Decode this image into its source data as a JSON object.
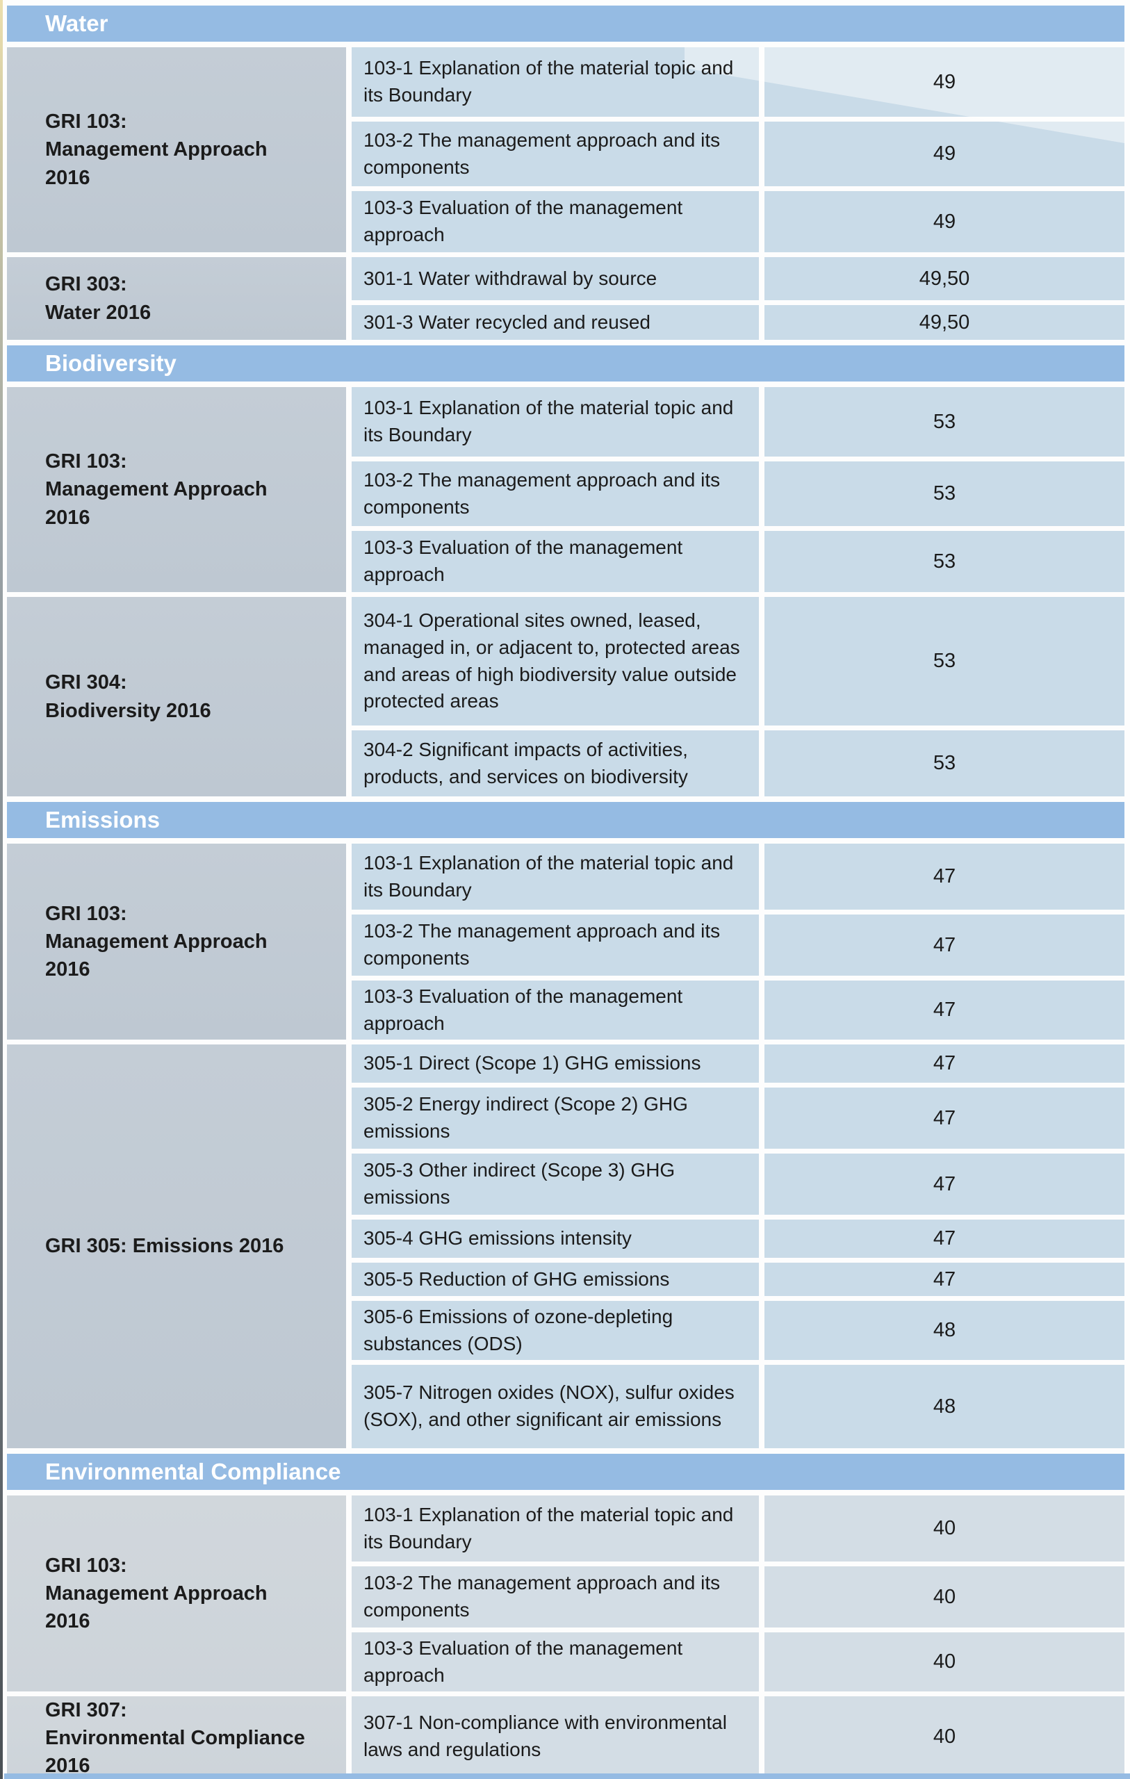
{
  "colors": {
    "header_blue": "#95bbe3",
    "left_cell": "#c4cdd6",
    "left_cell_light": "#d1d7dc",
    "body_cell": "#c9dbe8",
    "body_cell_light": "#d3dde5",
    "text_dark": "#1b1b1b",
    "page_bg": "#fdfdfd"
  },
  "sections": [
    {
      "title": "Water",
      "blocks": [
        {
          "left": "GRI 103:\nManagement Approach\n2016",
          "rows": [
            {
              "text": "103-1 Explanation of the material topic and its Boundary",
              "page": "49"
            },
            {
              "text": "103-2 The management approach and its components",
              "page": "49"
            },
            {
              "text": "103-3 Evaluation of the management approach",
              "page": "49"
            }
          ]
        },
        {
          "left": "GRI 303:\nWater 2016",
          "rows": [
            {
              "text": "301-1 Water withdrawal by source",
              "page": "49,50"
            },
            {
              "text": "301-3 Water recycled and reused",
              "page": "49,50"
            }
          ]
        }
      ]
    },
    {
      "title": "Biodiversity",
      "blocks": [
        {
          "left": "GRI 103:\nManagement Approach\n2016",
          "rows": [
            {
              "text": "103-1 Explanation of the material topic and its Boundary",
              "page": "53"
            },
            {
              "text": "103-2 The management approach and its components",
              "page": "53"
            },
            {
              "text": "103-3 Evaluation of the management approach",
              "page": "53"
            }
          ]
        },
        {
          "left": "GRI 304:\nBiodiversity 2016",
          "rows": [
            {
              "text": "304-1 Operational sites owned, leased, managed in, or adjacent to, protected areas and areas of high biodiversity value outside protected areas",
              "page": "53"
            },
            {
              "text": "304-2 Significant impacts of activities, products, and services on biodiversity",
              "page": "53"
            }
          ]
        }
      ]
    },
    {
      "title": "Emissions",
      "blocks": [
        {
          "left": "GRI 103:\nManagement Approach\n2016",
          "rows": [
            {
              "text": "103-1 Explanation of the material topic and its Boundary",
              "page": "47"
            },
            {
              "text": "103-2 The management approach and its components",
              "page": "47"
            },
            {
              "text": "103-3 Evaluation of the management approach",
              "page": "47"
            }
          ]
        },
        {
          "left": "GRI 305: Emissions 2016",
          "rows": [
            {
              "text": "305-1 Direct (Scope 1) GHG emissions",
              "page": "47"
            },
            {
              "text": "305-2 Energy indirect (Scope 2) GHG emissions",
              "page": "47"
            },
            {
              "text": "305-3 Other indirect (Scope 3) GHG emissions",
              "page": "47"
            },
            {
              "text": "305-4 GHG emissions intensity",
              "page": "47"
            },
            {
              "text": "305-5 Reduction of GHG emissions",
              "page": "47"
            },
            {
              "text": "305-6 Emissions of ozone-depleting substances (ODS)",
              "page": "48"
            },
            {
              "text": "305-7 Nitrogen oxides (NOX), sulfur oxides (SOX), and other significant air emissions",
              "page": "48"
            }
          ]
        }
      ]
    },
    {
      "title": "Environmental Compliance",
      "blocks": [
        {
          "left": "GRI 103:\nManagement Approach\n2016",
          "rows": [
            {
              "text": "103-1 Explanation of the material topic and its Boundary",
              "page": "40"
            },
            {
              "text": "103-2 The management approach and its components",
              "page": "40"
            },
            {
              "text": "103-3 Evaluation of the management approach",
              "page": "40"
            }
          ]
        },
        {
          "left": "GRI 307:\nEnvironmental Compliance\n2016",
          "rows": [
            {
              "text": "307-1 Non-compliance with environmental laws and regulations",
              "page": "40"
            }
          ]
        }
      ]
    }
  ]
}
